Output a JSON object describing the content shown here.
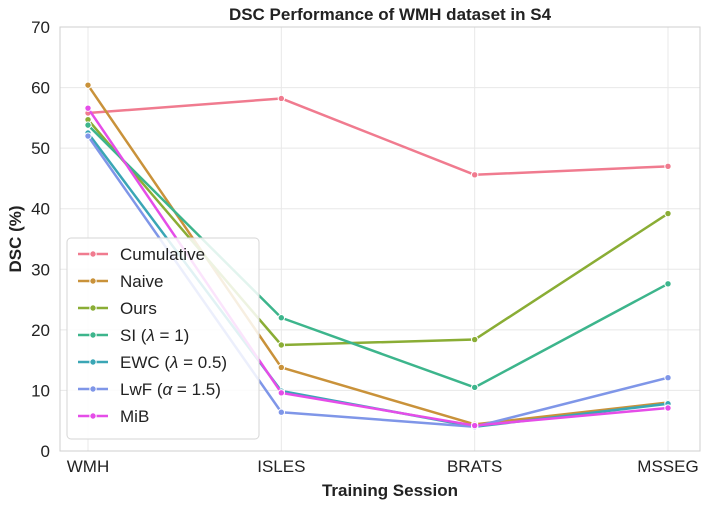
{
  "chart_data": {
    "type": "line",
    "title": "DSC Performance of WMH dataset in S4",
    "xlabel": "Training Session",
    "ylabel": "DSC (%)",
    "categories": [
      "WMH",
      "ISLES",
      "BRATS",
      "MSSEG"
    ],
    "ylim": [
      0,
      70
    ],
    "yticks": [
      "0",
      "10",
      "20",
      "30",
      "40",
      "50",
      "60",
      "70"
    ],
    "grid": true,
    "legend_position": "lower-left",
    "series": [
      {
        "name": "Cumulative",
        "label_main": "Cumulative",
        "label_sym": "",
        "label_end": "",
        "color": "#f07b8f",
        "values": [
          55.8,
          58.2,
          45.6,
          47.0
        ]
      },
      {
        "name": "Naive",
        "label_main": "Naive",
        "label_sym": "",
        "label_end": "",
        "color": "#c9923a",
        "values": [
          60.4,
          13.8,
          4.4,
          8.0
        ]
      },
      {
        "name": "Ours",
        "label_main": "Ours",
        "label_sym": "",
        "label_end": "",
        "color": "#8aad35",
        "values": [
          54.7,
          17.5,
          18.4,
          39.2
        ]
      },
      {
        "name": "SI (λ = 1)",
        "label_main": "SI (",
        "label_sym": "λ",
        "label_end": " = 1)",
        "color": "#3db58c",
        "values": [
          53.8,
          22.0,
          10.5,
          27.6
        ]
      },
      {
        "name": "EWC (λ = 0.5)",
        "label_main": "EWC (",
        "label_sym": "λ",
        "label_end": " = 0.5)",
        "color": "#3aa6b5",
        "values": [
          52.5,
          9.9,
          4.0,
          7.8
        ]
      },
      {
        "name": "LwF (α = 1.5)",
        "label_main": "LwF (",
        "label_sym": "α",
        "label_end": " = 1.5)",
        "color": "#7f96e8",
        "values": [
          52.0,
          6.4,
          4.0,
          12.1
        ]
      },
      {
        "name": "MiB",
        "label_main": "MiB",
        "label_sym": "",
        "label_end": "",
        "color": "#e54de8",
        "values": [
          56.6,
          9.6,
          4.2,
          7.1
        ]
      }
    ]
  }
}
